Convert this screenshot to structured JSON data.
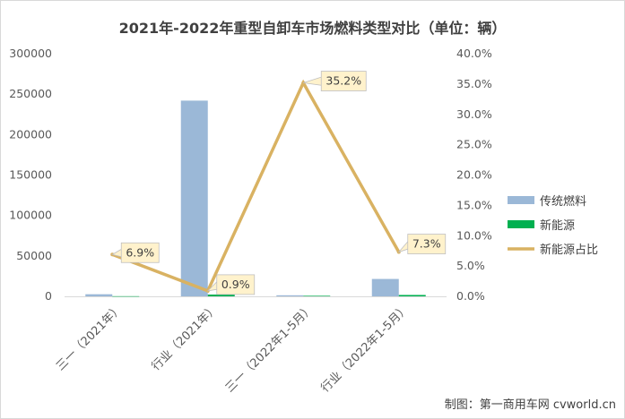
{
  "title": "2021年-2022年重型自卸车市场燃料类型对比（单位：辆）",
  "credit": "制图：第一商用车网 cvworld.cn",
  "chart_data": {
    "type": "bar",
    "categories": [
      "三一（2021年）",
      "行业（2021年）",
      "三一（2022年1-5月）",
      "行业（2022年1-5月）"
    ],
    "series": [
      {
        "name": "传统燃料",
        "type": "bar",
        "axis": "left",
        "color": "#9BB8D7",
        "values": [
          2600,
          242000,
          1300,
          21500
        ]
      },
      {
        "name": "新能源",
        "type": "bar",
        "axis": "left",
        "color": "#00B050",
        "values": [
          190,
          2200,
          700,
          1700
        ]
      },
      {
        "name": "新能源占比",
        "type": "line",
        "axis": "right",
        "color": "#D9B262",
        "values": [
          6.9,
          0.9,
          35.2,
          7.3
        ]
      }
    ],
    "data_labels": [
      "6.9%",
      "0.9%",
      "35.2%",
      "7.3%"
    ],
    "y_left": {
      "min": 0,
      "max": 300000,
      "ticks": [
        "0",
        "50000",
        "100000",
        "150000",
        "200000",
        "250000",
        "300000"
      ]
    },
    "y_right": {
      "min": 0,
      "max": 40,
      "ticks": [
        "0.0%",
        "5.0%",
        "10.0%",
        "15.0%",
        "20.0%",
        "25.0%",
        "30.0%",
        "35.0%",
        "40.0%"
      ]
    },
    "legend_position": "right",
    "grid": false
  }
}
